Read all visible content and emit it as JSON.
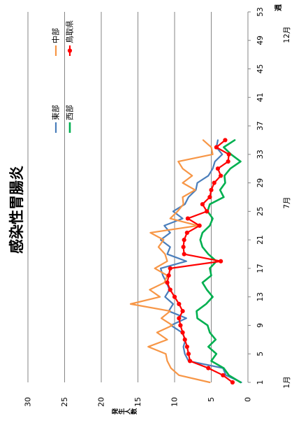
{
  "chart_data": {
    "type": "line",
    "title": "感染性胃腸炎",
    "xlabel": "週",
    "ylabel": "発生人数",
    "x_range": [
      1,
      53
    ],
    "x_ticks": [
      1,
      5,
      9,
      13,
      17,
      21,
      25,
      29,
      33,
      37,
      41,
      45,
      49,
      53
    ],
    "month_labels": [
      "1月",
      "7月",
      "12月"
    ],
    "ylim": [
      0,
      30
    ],
    "y_ticks": [
      0,
      5,
      10,
      15,
      20,
      25,
      30
    ],
    "grid": true,
    "legend": "top-right",
    "x": [
      1,
      2,
      3,
      4,
      5,
      6,
      7,
      8,
      9,
      10,
      11,
      12,
      13,
      14,
      15,
      16,
      17,
      18,
      19,
      20,
      21,
      22,
      23,
      24,
      25,
      26,
      27,
      28,
      29,
      30,
      31,
      32,
      33,
      34,
      35
    ],
    "series": [
      {
        "name": "東部",
        "color": "#4A7EBB",
        "values": [
          0.9,
          3.0,
          3.4,
          8.1,
          8.6,
          8.8,
          8.5,
          9.0,
          10.5,
          8.4,
          10.8,
          10.2,
          11.3,
          10.7,
          11.1,
          11.6,
          11.9,
          8.4,
          11.0,
          10.6,
          11.9,
          10.6,
          11.4,
          8.9,
          10.2,
          8.6,
          8.1,
          7.1,
          6.9,
          5.4,
          4.8,
          4.5,
          3.5,
          4.3,
          4.1
        ]
      },
      {
        "name": "中部",
        "color": "#F79646",
        "values": [
          5.2,
          9.4,
          10.5,
          11.0,
          11.2,
          13.6,
          11.0,
          12.4,
          10.3,
          11.8,
          10.6,
          16.0,
          12.0,
          13.4,
          11.4,
          11.0,
          12.7,
          11.0,
          11.3,
          12.2,
          11.5,
          13.3,
          6.8,
          10.6,
          9.6,
          8.8,
          8.9,
          7.2,
          8.9,
          7.6,
          8.9,
          9.5,
          4.8,
          5.0,
          6.1
        ]
      },
      {
        "name": "西部",
        "color": "#00B050",
        "values": [
          1.0,
          2.6,
          3.3,
          5.0,
          4.3,
          5.4,
          4.4,
          5.2,
          5.5,
          6.9,
          7.0,
          5.7,
          4.8,
          5.6,
          6.2,
          5.0,
          5.2,
          4.3,
          5.4,
          6.2,
          6.5,
          6.2,
          5.2,
          4.8,
          5.5,
          5.2,
          3.3,
          3.8,
          3.1,
          3.2,
          2.4,
          1.0,
          2.3,
          3.3,
          1.8
        ]
      },
      {
        "name": "鳥取県",
        "color": "#FF0000",
        "markers": true,
        "values": [
          2.1,
          3.4,
          5.4,
          7.9,
          8.1,
          8.3,
          8.6,
          8.9,
          9.2,
          9.4,
          8.9,
          9.4,
          10.0,
          10.6,
          11.0,
          10.8,
          10.6,
          3.7,
          8.7,
          8.8,
          8.7,
          8.3,
          6.6,
          8.2,
          5.6,
          6.2,
          5.2,
          5.0,
          4.6,
          3.7,
          4.1,
          2.7,
          2.6,
          4.3,
          3.1
        ]
      }
    ]
  }
}
